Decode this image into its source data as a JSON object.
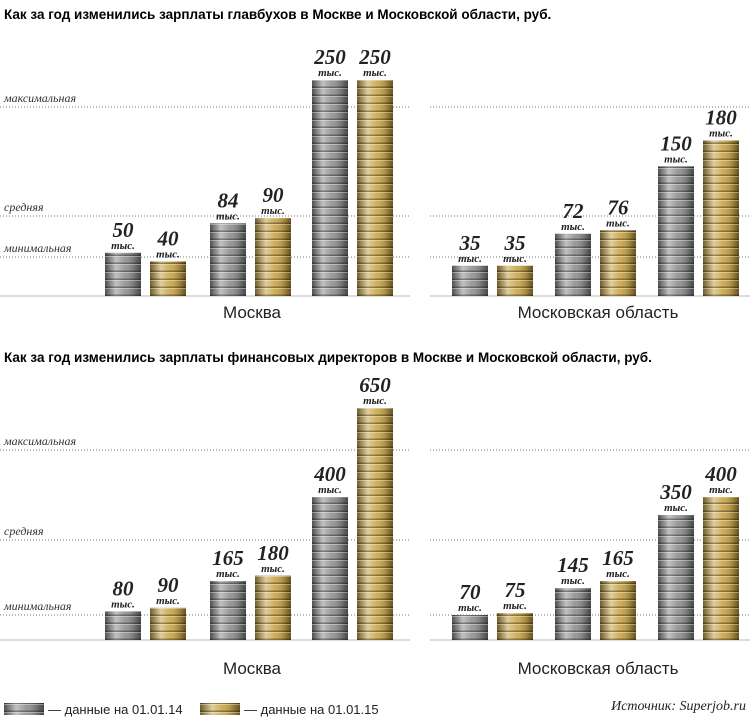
{
  "chart_data": [
    {
      "type": "bar",
      "title": "Как за год изменились зарплаты главбухов в Москве и Московской области, руб.",
      "unit": "тыс.",
      "categories": [
        "минимальная",
        "средняя",
        "максимальная"
      ],
      "panels": [
        {
          "label": "Москва",
          "series": [
            {
              "values": [
                50,
                84,
                250
              ]
            },
            {
              "values": [
                40,
                90,
                250
              ]
            }
          ]
        },
        {
          "label": "Московская область",
          "series": [
            {
              "values": [
                35,
                72,
                150
              ]
            },
            {
              "values": [
                35,
                76,
                180
              ]
            }
          ]
        }
      ]
    },
    {
      "type": "bar",
      "title": "Как за год изменились зарплаты финансовых директоров в Москве и Московской области, руб.",
      "unit": "тыс.",
      "categories": [
        "минимальная",
        "средняя",
        "максимальная"
      ],
      "panels": [
        {
          "label": "Москва",
          "series": [
            {
              "values": [
                80,
                165,
                400
              ]
            },
            {
              "values": [
                90,
                180,
                650
              ]
            }
          ]
        },
        {
          "label": "Московская область",
          "series": [
            {
              "values": [
                70,
                145,
                350
              ]
            },
            {
              "values": [
                75,
                165,
                400
              ]
            }
          ]
        }
      ]
    }
  ],
  "legend": {
    "series": [
      {
        "name": "— данные на 01.01.14",
        "color": "#8f8f8f"
      },
      {
        "name": "— данные на 01.01.15",
        "color": "#c9a546"
      }
    ]
  },
  "source": "Источник: Superjob.ru"
}
